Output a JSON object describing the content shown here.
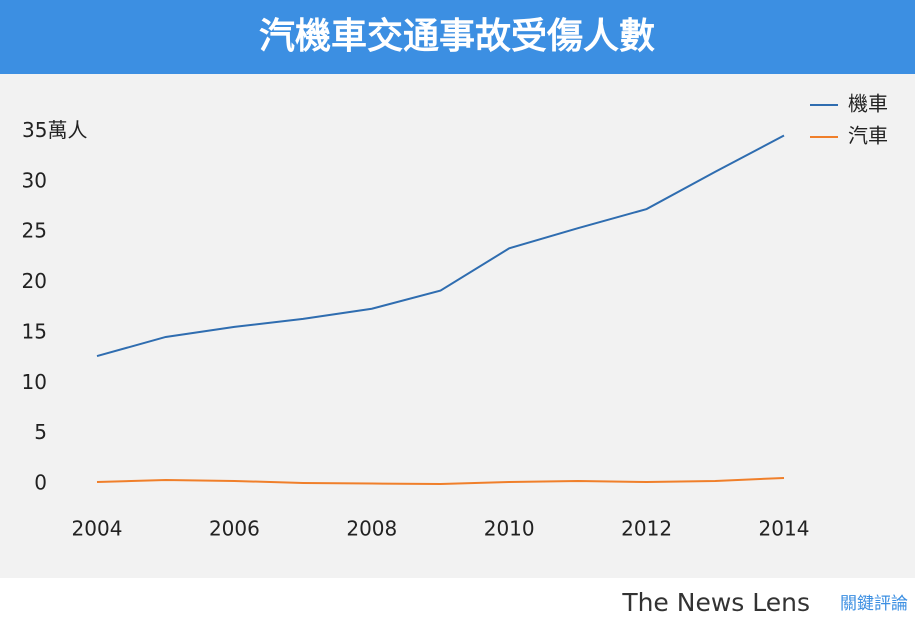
{
  "chart_data": {
    "type": "line",
    "title": "汽機車交通事故受傷人數",
    "x": [
      2004,
      2005,
      2006,
      2007,
      2008,
      2009,
      2010,
      2011,
      2012,
      2013,
      2014
    ],
    "series": [
      {
        "name": "機車",
        "color": "#2f6db0",
        "values": [
          12.7,
          14.6,
          15.6,
          16.4,
          17.4,
          19.2,
          23.4,
          25.4,
          27.3,
          31.0,
          34.6
        ]
      },
      {
        "name": "汽車",
        "color": "#f07f2a",
        "values": [
          0.2,
          0.4,
          0.3,
          0.1,
          0.05,
          0.0,
          0.2,
          0.3,
          0.2,
          0.3,
          0.6
        ]
      }
    ],
    "xlim": [
      2004,
      2014
    ],
    "xticks": [
      2004,
      2006,
      2008,
      2010,
      2012,
      2014
    ],
    "ylim": [
      0,
      35
    ],
    "yticks": [
      0,
      5,
      10,
      15,
      20,
      25,
      30,
      {
        "value": 35,
        "label": "35萬人"
      }
    ],
    "grid": false,
    "legend": "top-right",
    "credit": "The News Lens",
    "credit_local": "關鍵評論"
  }
}
